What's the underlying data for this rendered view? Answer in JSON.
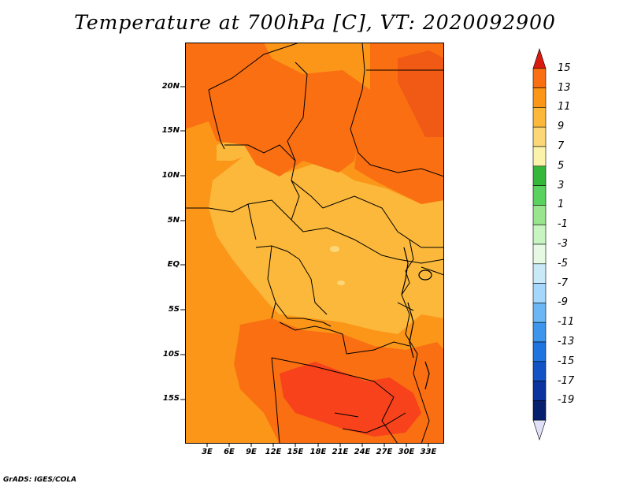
{
  "title": "Temperature at 700hPa [C], VT: 2020092900",
  "credit": "GrADS: IGES/COLA",
  "map": {
    "y_ticks": [
      "20N",
      "15N",
      "10N",
      "5N",
      "EQ",
      "5S",
      "10S",
      "15S"
    ],
    "x_ticks": [
      "3E",
      "6E",
      "9E",
      "12E",
      "15E",
      "18E",
      "21E",
      "24E",
      "27E",
      "30E",
      "33E"
    ],
    "colors": {
      "t13": "#f7421c",
      "t11": "#fa6f11",
      "t9": "#fb9619",
      "t7": "#fbb83a",
      "t5": "#fcd777",
      "border": "#000000"
    }
  },
  "colorbar": {
    "labels": [
      "15",
      "13",
      "11",
      "9",
      "7",
      "5",
      "3",
      "1",
      "-1",
      "-3",
      "-5",
      "-7",
      "-9",
      "-11",
      "-13",
      "-15",
      "-17",
      "-19"
    ],
    "colors": [
      "#fa3a1a",
      "#fa6f11",
      "#fb9619",
      "#fbb83a",
      "#fcd777",
      "#fcf3ab",
      "#35b83a",
      "#5ad25f",
      "#98e48f",
      "#c7f4c1",
      "#e6fae3",
      "#c9e9f9",
      "#a5d6fb",
      "#6bb7f5",
      "#3d96ec",
      "#1f74e0",
      "#1254c6",
      "#0b349f",
      "#061f6e",
      "#060b4f"
    ],
    "top_arrow_color": "#da1a10",
    "bottom_arrow_color": "#e0e0f8"
  }
}
